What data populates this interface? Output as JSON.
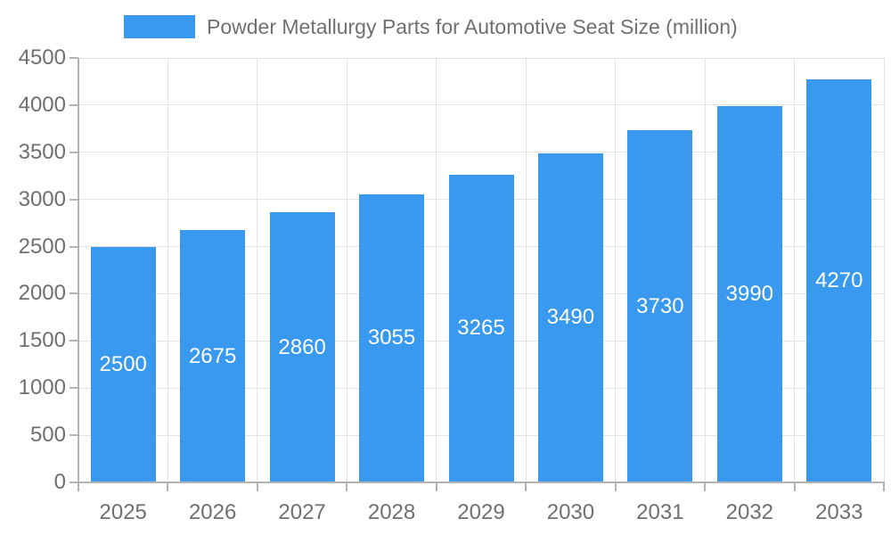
{
  "chart_data": {
    "type": "bar",
    "title": "Powder Metallurgy Parts for Automotive Seat Size (million)",
    "categories": [
      "2025",
      "2026",
      "2027",
      "2028",
      "2029",
      "2030",
      "2031",
      "2032",
      "2033"
    ],
    "values": [
      2500,
      2675,
      2860,
      3055,
      3265,
      3490,
      3730,
      3990,
      4270
    ],
    "series_name": "Powder Metallurgy Parts for Automotive Seat Size (million)",
    "xlabel": "",
    "ylabel": "",
    "ylim": [
      0,
      4500
    ],
    "ytick_step": 500,
    "yticks": [
      0,
      500,
      1000,
      1500,
      2000,
      2500,
      3000,
      3500,
      4000,
      4500
    ],
    "grid": true,
    "legend_position": "top",
    "value_labels": "inside-center",
    "colors": {
      "bar": "#3999EE",
      "bar_value_text": "#ffffff",
      "axis_text": "#6f6f6f",
      "legend_text": "#707070",
      "gridline": "#e3e3e3",
      "axis_line": "#b3b3b3"
    }
  }
}
